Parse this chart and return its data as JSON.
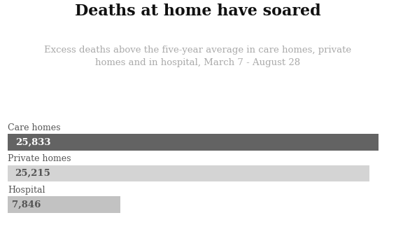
{
  "title": "Deaths at home have soared",
  "subtitle": "Excess deaths above the five-year average in care homes, private\nhomes and in hospital, March 7 - August 28",
  "categories": [
    "Care homes",
    "Private homes",
    "Hospital"
  ],
  "values": [
    25833,
    25215,
    7846
  ],
  "labels": [
    "25,833",
    "25,215",
    "7,846"
  ],
  "bar_colors": [
    "#636363",
    "#d4d4d4",
    "#c2c2c2"
  ],
  "label_colors": [
    "#ffffff",
    "#555555",
    "#555555"
  ],
  "max_value": 26500,
  "bg_color": "#ffffff",
  "title_color": "#111111",
  "subtitle_color": "#aaaaaa",
  "category_color": "#555555",
  "title_fontsize": 16,
  "subtitle_fontsize": 9.5,
  "category_fontsize": 9,
  "value_fontsize": 9.5
}
